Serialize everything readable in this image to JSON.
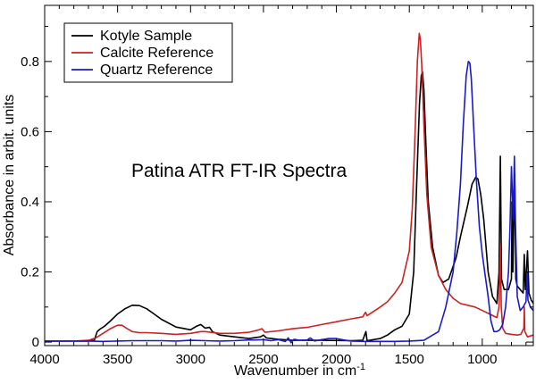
{
  "chart_data": {
    "type": "line",
    "title": "",
    "annotation": "Patina ATR FT-IR Spectra",
    "xlabel": "Wavenumber in cm",
    "xlabel_superscript": "-1",
    "ylabel": "Absorbance in arbit. units",
    "xlim": [
      4000,
      650
    ],
    "ylim": [
      -0.01,
      0.96
    ],
    "x_reversed": true,
    "x_ticks": [
      {
        "value": 4000,
        "label": "4000"
      },
      {
        "value": 3500,
        "label": "3500"
      },
      {
        "value": 3000,
        "label": "3000"
      },
      {
        "value": 2500,
        "label": "2500"
      },
      {
        "value": 2000,
        "label": "2000"
      },
      {
        "value": 1500,
        "label": "1500"
      },
      {
        "value": 1000,
        "label": "1000"
      }
    ],
    "y_ticks": [
      {
        "value": 0,
        "label": "0"
      },
      {
        "value": 0.2,
        "label": "0.2"
      },
      {
        "value": 0.4,
        "label": "0.4"
      },
      {
        "value": 0.6,
        "label": "0.6"
      },
      {
        "value": 0.8,
        "label": "0.8"
      }
    ],
    "grid": false,
    "legend_position": "top-left",
    "series": [
      {
        "name": "Kotyle Sample",
        "color": "#000000",
        "points": [
          [
            4000,
            0.003
          ],
          [
            3800,
            0.003
          ],
          [
            3700,
            0.003
          ],
          [
            3660,
            0.005
          ],
          [
            3640,
            0.03
          ],
          [
            3620,
            0.037
          ],
          [
            3590,
            0.045
          ],
          [
            3550,
            0.06
          ],
          [
            3500,
            0.08
          ],
          [
            3450,
            0.095
          ],
          [
            3400,
            0.105
          ],
          [
            3350,
            0.104
          ],
          [
            3300,
            0.095
          ],
          [
            3250,
            0.08
          ],
          [
            3200,
            0.065
          ],
          [
            3100,
            0.043
          ],
          [
            3000,
            0.035
          ],
          [
            2960,
            0.045
          ],
          [
            2930,
            0.05
          ],
          [
            2900,
            0.04
          ],
          [
            2870,
            0.042
          ],
          [
            2850,
            0.03
          ],
          [
            2800,
            0.02
          ],
          [
            2700,
            0.015
          ],
          [
            2600,
            0.01
          ],
          [
            2520,
            0.015
          ],
          [
            2500,
            0.02
          ],
          [
            2480,
            0.012
          ],
          [
            2400,
            0.008
          ],
          [
            2300,
            0.005
          ],
          [
            2100,
            0.005
          ],
          [
            1900,
            0.004
          ],
          [
            1820,
            0.005
          ],
          [
            1798,
            0.03
          ],
          [
            1790,
            0.004
          ],
          [
            1700,
            0.01
          ],
          [
            1650,
            0.02
          ],
          [
            1600,
            0.035
          ],
          [
            1550,
            0.045
          ],
          [
            1500,
            0.08
          ],
          [
            1470,
            0.2
          ],
          [
            1450,
            0.45
          ],
          [
            1430,
            0.68
          ],
          [
            1418,
            0.76
          ],
          [
            1410,
            0.77
          ],
          [
            1400,
            0.72
          ],
          [
            1385,
            0.55
          ],
          [
            1370,
            0.4
          ],
          [
            1340,
            0.27
          ],
          [
            1300,
            0.19
          ],
          [
            1270,
            0.17
          ],
          [
            1230,
            0.18
          ],
          [
            1180,
            0.24
          ],
          [
            1150,
            0.3
          ],
          [
            1100,
            0.39
          ],
          [
            1070,
            0.45
          ],
          [
            1045,
            0.47
          ],
          [
            1030,
            0.465
          ],
          [
            1010,
            0.42
          ],
          [
            990,
            0.35
          ],
          [
            960,
            0.2
          ],
          [
            930,
            0.13
          ],
          [
            900,
            0.11
          ],
          [
            885,
            0.2
          ],
          [
            876,
            0.53
          ],
          [
            868,
            0.18
          ],
          [
            850,
            0.15
          ],
          [
            820,
            0.15
          ],
          [
            800,
            0.18
          ],
          [
            796,
            0.4
          ],
          [
            790,
            0.2
          ],
          [
            778,
            0.48
          ],
          [
            770,
            0.18
          ],
          [
            760,
            0.16
          ],
          [
            740,
            0.15
          ],
          [
            720,
            0.14
          ],
          [
            712,
            0.25
          ],
          [
            705,
            0.15
          ],
          [
            690,
            0.26
          ],
          [
            680,
            0.14
          ],
          [
            665,
            0.12
          ],
          [
            650,
            0.11
          ]
        ]
      },
      {
        "name": "Calcite Reference",
        "color": "#cc2222",
        "points": [
          [
            4000,
            0.003
          ],
          [
            3800,
            0.003
          ],
          [
            3700,
            0.005
          ],
          [
            3650,
            0.012
          ],
          [
            3600,
            0.025
          ],
          [
            3550,
            0.038
          ],
          [
            3500,
            0.048
          ],
          [
            3470,
            0.048
          ],
          [
            3440,
            0.04
          ],
          [
            3400,
            0.03
          ],
          [
            3350,
            0.027
          ],
          [
            3300,
            0.027
          ],
          [
            3200,
            0.025
          ],
          [
            3100,
            0.022
          ],
          [
            3000,
            0.025
          ],
          [
            2930,
            0.03
          ],
          [
            2900,
            0.03
          ],
          [
            2800,
            0.025
          ],
          [
            2700,
            0.025
          ],
          [
            2600,
            0.028
          ],
          [
            2530,
            0.035
          ],
          [
            2510,
            0.038
          ],
          [
            2490,
            0.028
          ],
          [
            2400,
            0.032
          ],
          [
            2300,
            0.038
          ],
          [
            2200,
            0.042
          ],
          [
            2100,
            0.05
          ],
          [
            2000,
            0.058
          ],
          [
            1900,
            0.066
          ],
          [
            1820,
            0.072
          ],
          [
            1800,
            0.085
          ],
          [
            1790,
            0.075
          ],
          [
            1700,
            0.1
          ],
          [
            1650,
            0.115
          ],
          [
            1600,
            0.14
          ],
          [
            1550,
            0.17
          ],
          [
            1500,
            0.26
          ],
          [
            1480,
            0.38
          ],
          [
            1460,
            0.6
          ],
          [
            1445,
            0.8
          ],
          [
            1432,
            0.88
          ],
          [
            1425,
            0.865
          ],
          [
            1415,
            0.79
          ],
          [
            1400,
            0.62
          ],
          [
            1380,
            0.42
          ],
          [
            1350,
            0.27
          ],
          [
            1300,
            0.19
          ],
          [
            1250,
            0.15
          ],
          [
            1200,
            0.125
          ],
          [
            1150,
            0.11
          ],
          [
            1100,
            0.105
          ],
          [
            1050,
            0.1
          ],
          [
            1000,
            0.09
          ],
          [
            950,
            0.08
          ],
          [
            900,
            0.07
          ],
          [
            885,
            0.1
          ],
          [
            876,
            0.28
          ],
          [
            870,
            0.1
          ],
          [
            860,
            0.04
          ],
          [
            840,
            0.025
          ],
          [
            800,
            0.022
          ],
          [
            760,
            0.02
          ],
          [
            735,
            0.022
          ],
          [
            715,
            0.04
          ],
          [
            712,
            0.1
          ],
          [
            708,
            0.03
          ],
          [
            690,
            0.015
          ],
          [
            650,
            0.02
          ]
        ]
      },
      {
        "name": "Quartz Reference",
        "color": "#1a1acc",
        "points": [
          [
            4000,
            0.003
          ],
          [
            3800,
            0.003
          ],
          [
            3700,
            0.003
          ],
          [
            3600,
            0.002
          ],
          [
            3500,
            0.003
          ],
          [
            3400,
            0.004
          ],
          [
            3300,
            0.004
          ],
          [
            3200,
            0.004
          ],
          [
            3100,
            0.003
          ],
          [
            3000,
            0.005
          ],
          [
            2900,
            0.004
          ],
          [
            2800,
            0.003
          ],
          [
            2700,
            0.004
          ],
          [
            2600,
            0.006
          ],
          [
            2550,
            0.006
          ],
          [
            2500,
            0.007
          ],
          [
            2450,
            0.004
          ],
          [
            2400,
            0.007
          ],
          [
            2350,
            0.002
          ],
          [
            2330,
            0.012
          ],
          [
            2310,
            -0.002
          ],
          [
            2290,
            0.008
          ],
          [
            2250,
            0.005
          ],
          [
            2200,
            0.006
          ],
          [
            2180,
            0.012
          ],
          [
            2150,
            0.003
          ],
          [
            2100,
            0.007
          ],
          [
            2050,
            0.01
          ],
          [
            2000,
            0.01
          ],
          [
            1950,
            0.006
          ],
          [
            1900,
            0.003
          ],
          [
            1800,
            0.002
          ],
          [
            1700,
            0.002
          ],
          [
            1600,
            0.002
          ],
          [
            1500,
            0.003
          ],
          [
            1400,
            0.005
          ],
          [
            1300,
            0.03
          ],
          [
            1250,
            0.1
          ],
          [
            1200,
            0.2
          ],
          [
            1175,
            0.31
          ],
          [
            1150,
            0.45
          ],
          [
            1130,
            0.62
          ],
          [
            1110,
            0.76
          ],
          [
            1095,
            0.8
          ],
          [
            1085,
            0.795
          ],
          [
            1075,
            0.75
          ],
          [
            1060,
            0.62
          ],
          [
            1040,
            0.46
          ],
          [
            1020,
            0.33
          ],
          [
            1000,
            0.25
          ],
          [
            980,
            0.19
          ],
          [
            960,
            0.13
          ],
          [
            940,
            0.06
          ],
          [
            920,
            0.03
          ],
          [
            900,
            0.03
          ],
          [
            880,
            0.035
          ],
          [
            860,
            0.05
          ],
          [
            840,
            0.1
          ],
          [
            820,
            0.2
          ],
          [
            810,
            0.33
          ],
          [
            800,
            0.5
          ],
          [
            795,
            0.44
          ],
          [
            788,
            0.35
          ],
          [
            780,
            0.53
          ],
          [
            772,
            0.33
          ],
          [
            760,
            0.13
          ],
          [
            740,
            0.09
          ],
          [
            720,
            0.1
          ],
          [
            700,
            0.115
          ],
          [
            692,
            0.2
          ],
          [
            687,
            0.12
          ],
          [
            670,
            0.1
          ],
          [
            650,
            0.09
          ]
        ]
      }
    ]
  }
}
